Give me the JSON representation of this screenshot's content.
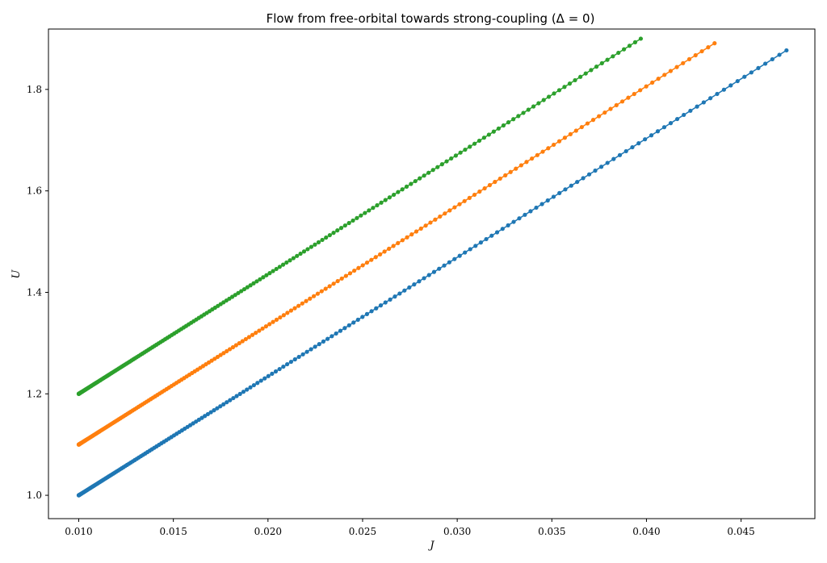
{
  "chart_data": {
    "type": "line",
    "title": "Flow from free-orbital towards strong-coupling (Δ = 0)",
    "xlabel": "J",
    "ylabel": "U",
    "xlim": [
      0.0084,
      0.0489
    ],
    "ylim": [
      0.954,
      1.919
    ],
    "xticks": [
      0.01,
      0.015,
      0.02,
      0.025,
      0.03,
      0.035,
      0.04,
      0.045
    ],
    "xtick_labels": [
      "0.010",
      "0.015",
      "0.020",
      "0.025",
      "0.030",
      "0.035",
      "0.040",
      "0.045"
    ],
    "yticks": [
      1.0,
      1.2,
      1.4,
      1.6,
      1.8
    ],
    "ytick_labels": [
      "1.0",
      "1.2",
      "1.4",
      "1.6",
      "1.8"
    ],
    "grid": false,
    "markers": true,
    "series": [
      {
        "color": "#1f77b4",
        "start": [
          0.01,
          1.0
        ],
        "end": [
          0.0474,
          1.877
        ],
        "points": 200
      },
      {
        "color": "#ff7f0e",
        "start": [
          0.01,
          1.1
        ],
        "end": [
          0.0436,
          1.891
        ],
        "points": 200
      },
      {
        "color": "#2ca02c",
        "start": [
          0.01,
          1.2
        ],
        "end": [
          0.0397,
          1.9
        ],
        "points": 200
      }
    ]
  }
}
